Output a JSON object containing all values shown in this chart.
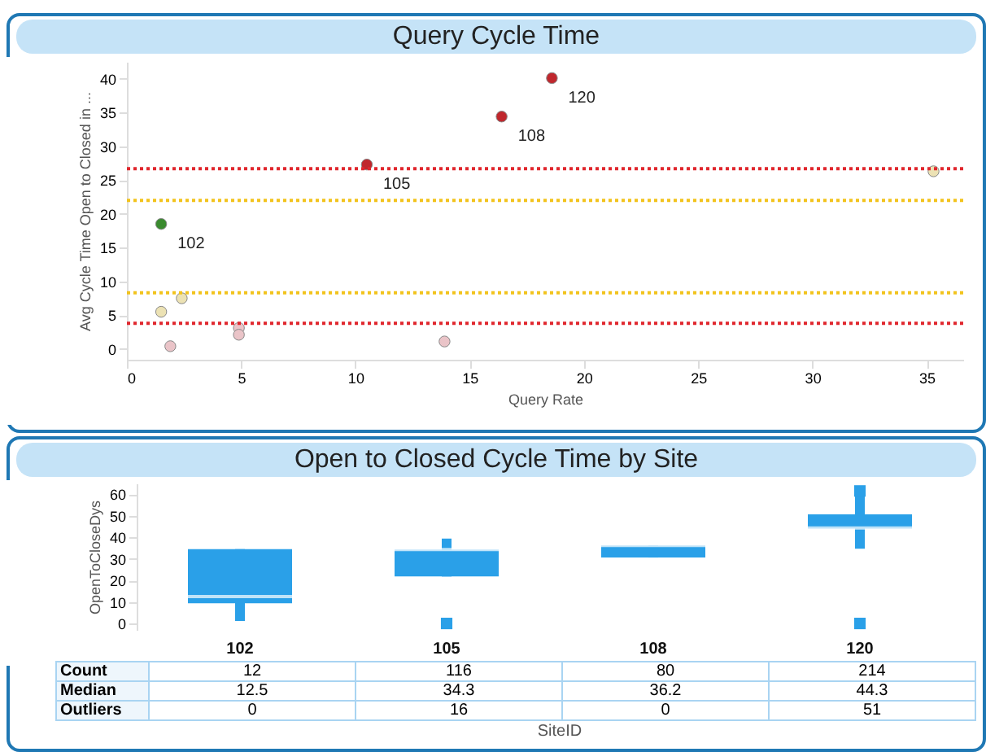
{
  "chart_data": [
    {
      "type": "scatter",
      "title": "Query Cycle Time",
      "xlabel": "Query Rate",
      "ylabel": "Avg Cycle Time Open to Closed in ...",
      "xlim": [
        0,
        36.6
      ],
      "ylim": [
        -1.6,
        42.5
      ],
      "xticks": [
        0,
        5,
        10,
        15,
        20,
        25,
        30,
        35
      ],
      "yticks": [
        0,
        5,
        10,
        15,
        20,
        25,
        30,
        35,
        40
      ],
      "marker": "circle",
      "series": [
        {
          "x": [
            1.5,
            10.5,
            16.4,
            18.6,
            1.5,
            2.4,
            1.9,
            4.9,
            4.9,
            13.9,
            35.3
          ],
          "values": [
            18.5,
            27.3,
            34.4,
            40.1,
            5.5,
            7.5,
            0.4,
            3.1,
            2.1,
            1.1,
            26.3
          ],
          "colors": [
            "#3a8a2e",
            "#c0272d",
            "#c0272d",
            "#c0272d",
            "#ece2b4",
            "#ece2b4",
            "#eac4c8",
            "#eac4c8",
            "#eac4c8",
            "#eac4c8",
            "#ece2b4"
          ]
        }
      ],
      "ref_lines": [
        {
          "axis": "y",
          "value": 26.7,
          "color": "#e0262d",
          "line_style": "dotted"
        },
        {
          "axis": "y",
          "value": 22,
          "color": "#f2c31c",
          "line_style": "dotted"
        },
        {
          "axis": "y",
          "value": 8.3,
          "color": "#f2c31c",
          "line_style": "dotted"
        },
        {
          "axis": "y",
          "value": 3.8,
          "color": "#e0262d",
          "line_style": "dotted"
        }
      ],
      "annotations": [
        {
          "text": "102",
          "x": 1.5,
          "y": 18.5
        },
        {
          "text": "105",
          "x": 10.5,
          "y": 27.3
        },
        {
          "text": "108",
          "x": 16.4,
          "y": 34.4
        },
        {
          "text": "120",
          "x": 18.6,
          "y": 40.1
        }
      ]
    },
    {
      "type": "box",
      "title": "Open to Closed Cycle Time by Site",
      "xlabel": "SiteID",
      "ylabel": "OpenToCloseDys",
      "categories": [
        "102",
        "105",
        "108",
        "120"
      ],
      "ylim": [
        -3,
        65
      ],
      "yticks": [
        0,
        10,
        20,
        30,
        40,
        50,
        60
      ],
      "series": [
        {
          "color": "#2aa0e8",
          "boxes": [
            {
              "low": 1.2,
              "q1": 9.4,
              "median": 12.5,
              "q3": 34.5,
              "high": 34.5
            },
            {
              "low": 21.8,
              "q1": 21.8,
              "median": 34.3,
              "q3": 34.3,
              "high": 39.4,
              "outliers": [
                0
              ]
            },
            {
              "low": 30.6,
              "q1": 30.6,
              "median": 36.2,
              "q3": 36.2,
              "high": 36.2
            },
            {
              "low": 34.7,
              "q1": 44,
              "median": 44.3,
              "q3": 50.6,
              "high": 59.4,
              "outliers": [
                0,
                61.5
              ]
            }
          ]
        }
      ],
      "annotations": [
        "Count",
        "12",
        "116",
        "80",
        "214",
        "Median",
        "12.5",
        "34.3",
        "36.2",
        "44.3",
        "Outliers",
        "0",
        "16",
        "0",
        "51"
      ]
    }
  ]
}
